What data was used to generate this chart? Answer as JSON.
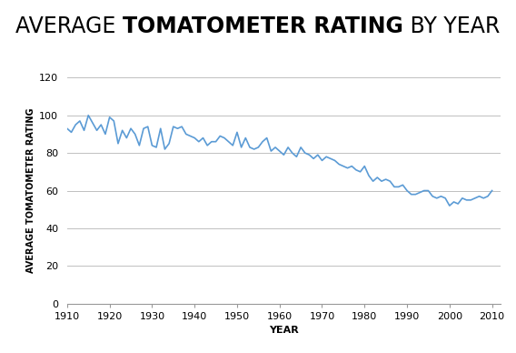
{
  "xlabel": "YEAR",
  "ylabel": "AVERAGE TOMATOMETER RATING",
  "xlim": [
    1910,
    2012
  ],
  "ylim": [
    0,
    120
  ],
  "yticks": [
    0,
    20,
    40,
    60,
    80,
    100,
    120
  ],
  "xticks": [
    1910,
    1920,
    1930,
    1940,
    1950,
    1960,
    1970,
    1980,
    1990,
    2000,
    2010
  ],
  "line_color": "#5b9bd5",
  "background_color": "#ffffff",
  "grid_color": "#c0c0c0",
  "title_parts": [
    {
      "text": "AVERAGE ",
      "bold": false
    },
    {
      "text": "TOMATOMETER RATING",
      "bold": true
    },
    {
      "text": " BY YEAR",
      "bold": false
    }
  ],
  "title_fontsize": 17,
  "axis_label_fontsize": 8,
  "tick_fontsize": 8,
  "years": [
    1910,
    1911,
    1912,
    1913,
    1914,
    1915,
    1916,
    1917,
    1918,
    1919,
    1920,
    1921,
    1922,
    1923,
    1924,
    1925,
    1926,
    1927,
    1928,
    1929,
    1930,
    1931,
    1932,
    1933,
    1934,
    1935,
    1936,
    1937,
    1938,
    1939,
    1940,
    1941,
    1942,
    1943,
    1944,
    1945,
    1946,
    1947,
    1948,
    1949,
    1950,
    1951,
    1952,
    1953,
    1954,
    1955,
    1956,
    1957,
    1958,
    1959,
    1960,
    1961,
    1962,
    1963,
    1964,
    1965,
    1966,
    1967,
    1968,
    1969,
    1970,
    1971,
    1972,
    1973,
    1974,
    1975,
    1976,
    1977,
    1978,
    1979,
    1980,
    1981,
    1982,
    1983,
    1984,
    1985,
    1986,
    1987,
    1988,
    1989,
    1990,
    1991,
    1992,
    1993,
    1994,
    1995,
    1996,
    1997,
    1998,
    1999,
    2000,
    2001,
    2002,
    2003,
    2004,
    2005,
    2006,
    2007,
    2008,
    2009,
    2010
  ],
  "values": [
    93,
    91,
    95,
    97,
    92,
    100,
    96,
    92,
    95,
    90,
    99,
    97,
    85,
    92,
    88,
    93,
    90,
    84,
    93,
    94,
    84,
    83,
    93,
    82,
    85,
    94,
    93,
    94,
    90,
    89,
    88,
    86,
    88,
    84,
    86,
    86,
    89,
    88,
    86,
    84,
    91,
    83,
    88,
    83,
    82,
    83,
    86,
    88,
    81,
    83,
    81,
    79,
    83,
    80,
    78,
    83,
    80,
    79,
    77,
    79,
    76,
    78,
    77,
    76,
    74,
    73,
    72,
    73,
    71,
    70,
    73,
    68,
    65,
    67,
    65,
    66,
    65,
    62,
    62,
    63,
    60,
    58,
    58,
    59,
    60,
    60,
    57,
    56,
    57,
    56,
    52,
    54,
    53,
    56,
    55,
    55,
    56,
    57,
    56,
    57,
    60
  ]
}
